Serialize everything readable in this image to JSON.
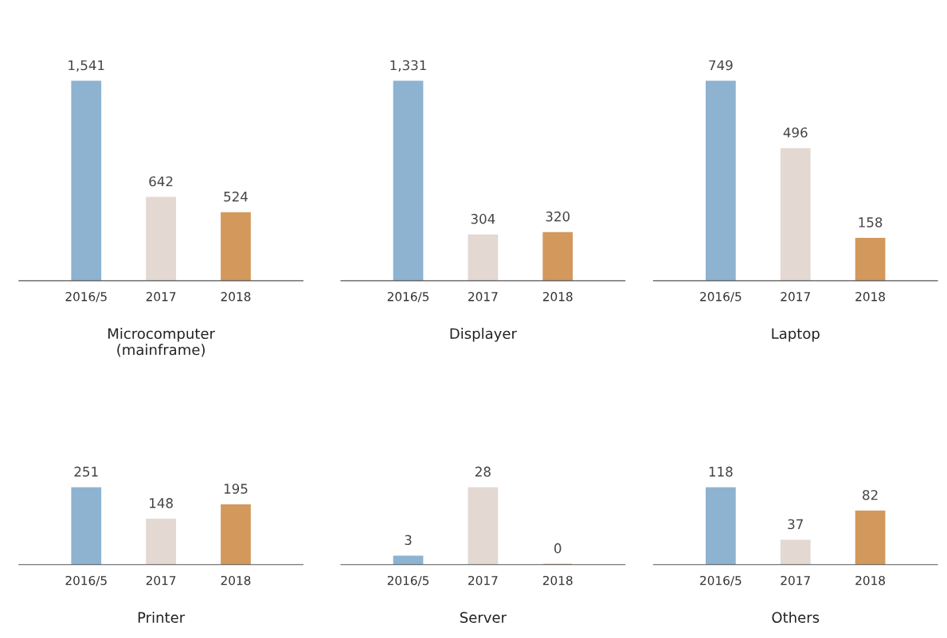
{
  "chart_data": [
    {
      "type": "bar",
      "xlabel": "Microcomputer\n(mainframe)",
      "categories": [
        "2016/5",
        "2017",
        "2018"
      ],
      "values": [
        1541,
        642,
        524
      ],
      "value_labels": [
        "1,541",
        "642",
        "524"
      ],
      "colors": [
        "#8db3d0",
        "#e3d8d2",
        "#d3985c"
      ],
      "tick_labels": "x",
      "grid": false,
      "legend": false
    },
    {
      "type": "bar",
      "xlabel": "Displayer",
      "categories": [
        "2016/5",
        "2017",
        "2018"
      ],
      "values": [
        1331,
        304,
        320
      ],
      "value_labels": [
        "1,331",
        "304",
        "320"
      ],
      "colors": [
        "#8db3d0",
        "#e3d8d2",
        "#d3985c"
      ],
      "tick_labels": "x",
      "grid": false,
      "legend": false
    },
    {
      "type": "bar",
      "xlabel": "Laptop",
      "categories": [
        "2016/5",
        "2017",
        "2018"
      ],
      "values": [
        749,
        496,
        158
      ],
      "value_labels": [
        "749",
        "496",
        "158"
      ],
      "colors": [
        "#8db3d0",
        "#e3d8d2",
        "#d3985c"
      ],
      "tick_labels": "x",
      "grid": false,
      "legend": false
    },
    {
      "type": "bar",
      "xlabel": "Printer",
      "categories": [
        "2016/5",
        "2017",
        "2018"
      ],
      "values": [
        251,
        148,
        195
      ],
      "value_labels": [
        "251",
        "148",
        "195"
      ],
      "colors": [
        "#8db3d0",
        "#e3d8d2",
        "#d3985c"
      ],
      "tick_labels": "x",
      "grid": false,
      "legend": false
    },
    {
      "type": "bar",
      "xlabel": "Server",
      "categories": [
        "2016/5",
        "2017",
        "2018"
      ],
      "values": [
        3,
        28,
        0
      ],
      "value_labels": [
        "3",
        "28",
        "0"
      ],
      "colors": [
        "#8db3d0",
        "#e3d8d2",
        "#d3985c"
      ],
      "tick_labels": "x",
      "grid": false,
      "legend": false
    },
    {
      "type": "bar",
      "xlabel": "Others",
      "categories": [
        "2016/5",
        "2017",
        "2018"
      ],
      "values": [
        118,
        37,
        82
      ],
      "value_labels": [
        "118",
        "37",
        "82"
      ],
      "colors": [
        "#8db3d0",
        "#e3d8d2",
        "#d3985c"
      ],
      "tick_labels": "x",
      "grid": false,
      "legend": false
    }
  ]
}
